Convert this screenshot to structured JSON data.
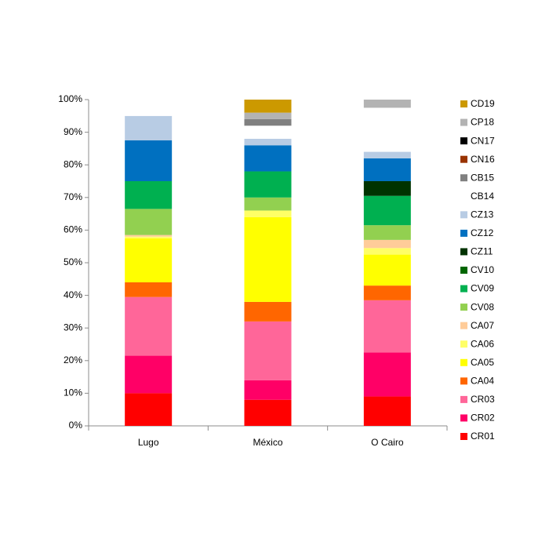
{
  "chart_data": {
    "type": "stacked_bar",
    "categories": [
      "Lugo",
      "México",
      "O Cairo"
    ],
    "ylim": [
      0,
      100
    ],
    "yticks": [
      {
        "value": 0,
        "label": "0%"
      },
      {
        "value": 10,
        "label": "10%"
      },
      {
        "value": 20,
        "label": "20%"
      },
      {
        "value": 30,
        "label": "30%"
      },
      {
        "value": 40,
        "label": "40%"
      },
      {
        "value": 50,
        "label": "50%"
      },
      {
        "value": 60,
        "label": "60%"
      },
      {
        "value": 70,
        "label": "70%"
      },
      {
        "value": 80,
        "label": "80%"
      },
      {
        "value": 90,
        "label": "90%"
      },
      {
        "value": 100,
        "label": "100%"
      }
    ],
    "grid": false,
    "legend": "right",
    "series": [
      {
        "name": "CR01",
        "color": "#ff0000",
        "values": [
          10,
          8,
          9
        ]
      },
      {
        "name": "CR02",
        "color": "#ff0066",
        "values": [
          11.5,
          6,
          13.5
        ]
      },
      {
        "name": "CR03",
        "color": "#ff6699",
        "values": [
          18,
          18,
          16
        ]
      },
      {
        "name": "CA04",
        "color": "#ff6600",
        "values": [
          4.5,
          6,
          4.5
        ]
      },
      {
        "name": "CA05",
        "color": "#ffff00",
        "values": [
          13.5,
          26,
          9.5
        ]
      },
      {
        "name": "CA06",
        "color": "#ffff66",
        "values": [
          0.5,
          2,
          2
        ]
      },
      {
        "name": "CA07",
        "color": "#ffcc99",
        "values": [
          0.5,
          0,
          2.5
        ]
      },
      {
        "name": "CV08",
        "color": "#92d050",
        "values": [
          8,
          4,
          4.5
        ]
      },
      {
        "name": "CV09",
        "color": "#00b050",
        "values": [
          8.5,
          8,
          9
        ]
      },
      {
        "name": "CV10",
        "color": "#006600",
        "values": [
          0,
          0,
          0
        ]
      },
      {
        "name": "CZ11",
        "color": "#003300",
        "values": [
          0,
          0,
          4.5
        ]
      },
      {
        "name": "CZ12",
        "color": "#0070c0",
        "values": [
          12.5,
          8,
          7
        ]
      },
      {
        "name": "CZ13",
        "color": "#b8cce4",
        "values": [
          7.5,
          2,
          2
        ]
      },
      {
        "name": "CB14",
        "color": "#ffffff",
        "values": [
          5,
          4,
          13.5
        ]
      },
      {
        "name": "CB15",
        "color": "#808080",
        "values": [
          0,
          2,
          0
        ]
      },
      {
        "name": "CN16",
        "color": "#993300",
        "values": [
          0,
          0,
          0
        ]
      },
      {
        "name": "CN17",
        "color": "#000000",
        "values": [
          0,
          0,
          0
        ]
      },
      {
        "name": "CP18",
        "color": "#b3b3b3",
        "values": [
          0,
          2,
          2.5
        ]
      },
      {
        "name": "CD19",
        "color": "#cc9900",
        "values": [
          0,
          4,
          0
        ]
      }
    ]
  }
}
